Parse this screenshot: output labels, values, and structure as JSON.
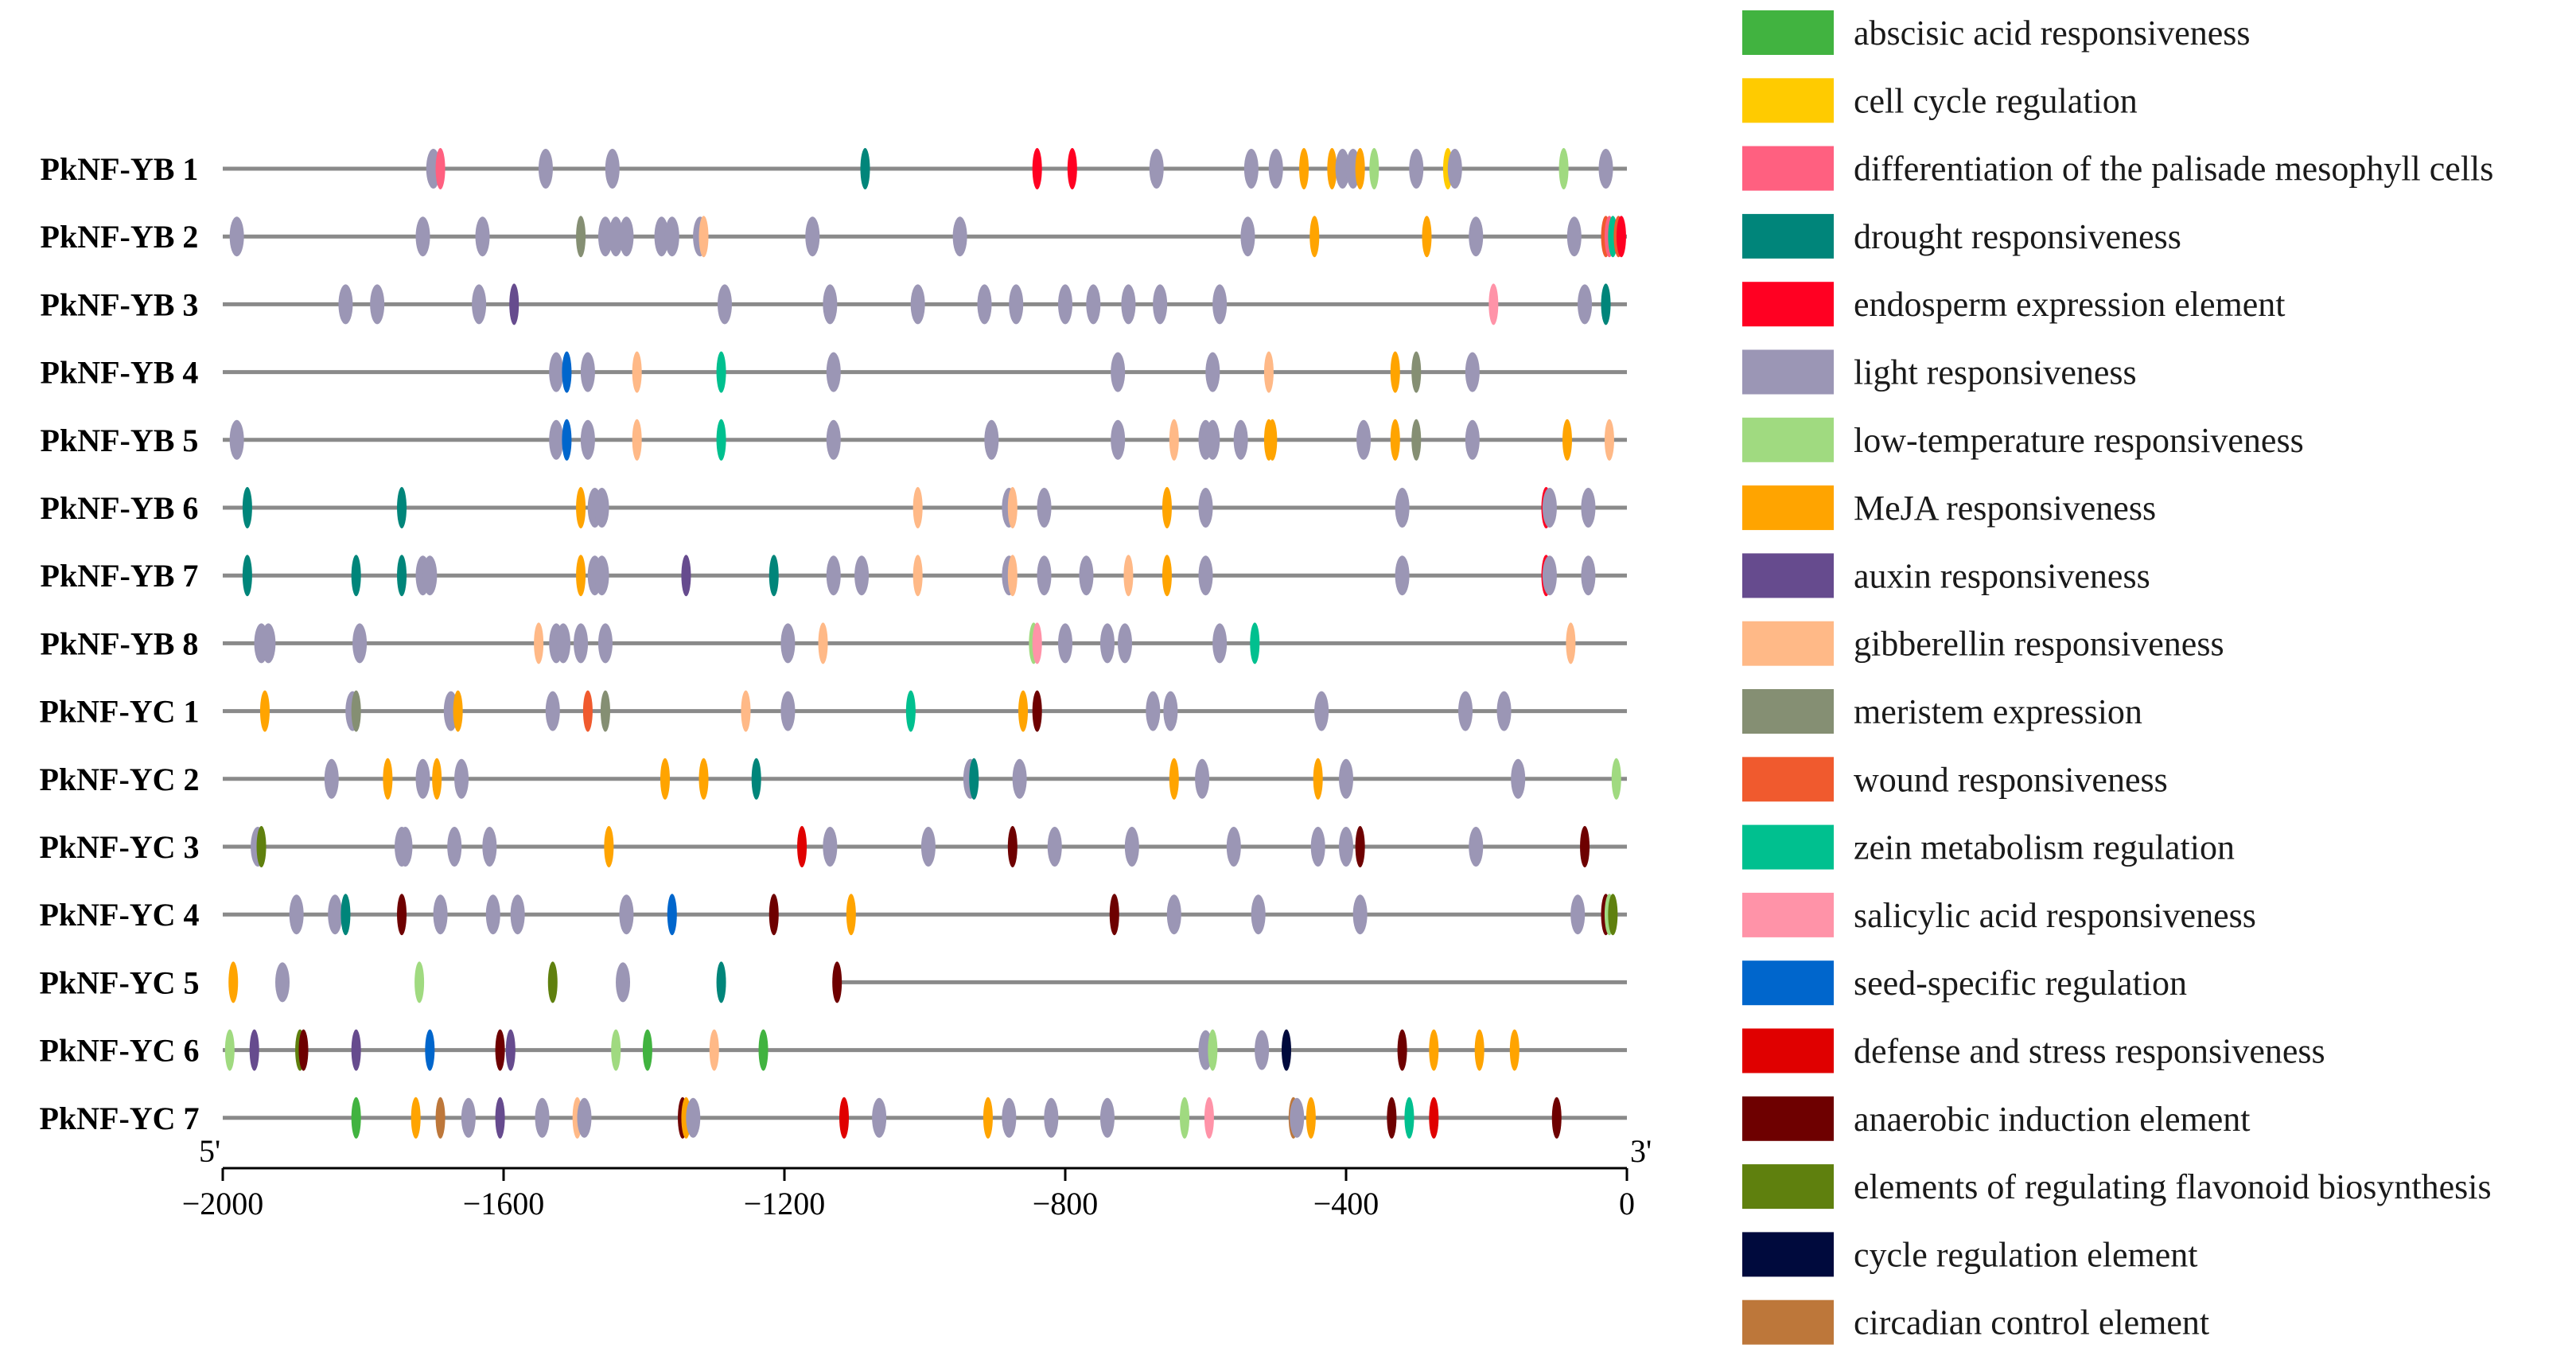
{
  "chart_data": {
    "type": "scatter",
    "title": "",
    "xlabel": "",
    "ylabel": "",
    "xlim": [
      -2000,
      0
    ],
    "x_ticks": [
      -2000,
      -1600,
      -1200,
      -800,
      -400,
      0
    ],
    "x_tick_labels": [
      "−2000",
      "−1600",
      "−1200",
      "−800",
      "−400",
      "0"
    ],
    "end_labels": {
      "left": "5'",
      "right": "3'"
    },
    "categories": [
      {
        "name": "abscisic acid responsiveness",
        "color": "#41b340"
      },
      {
        "name": "cell cycle regulation",
        "color": "#ffcb00"
      },
      {
        "name": "differentiation of the palisade mesophyll cells",
        "color": "#ff6080"
      },
      {
        "name": "drought responsiveness",
        "color": "#00857a"
      },
      {
        "name": "endosperm expression element",
        "color": "#ff0022"
      },
      {
        "name": "light responsiveness",
        "color": "#9b96b5"
      },
      {
        "name": "low-temperature responsiveness",
        "color": "#a0da80"
      },
      {
        "name": "MeJA responsiveness",
        "color": "#ffa400"
      },
      {
        "name": "auxin responsiveness",
        "color": "#664b8e"
      },
      {
        "name": "gibberellin responsiveness",
        "color": "#ffb987"
      },
      {
        "name": "meristem expression",
        "color": "#858f73"
      },
      {
        "name": "wound responsiveness",
        "color": "#f05a2e"
      },
      {
        "name": "zein metabolism regulation",
        "color": "#00c08f"
      },
      {
        "name": "salicylic acid responsiveness",
        "color": "#ff93a8"
      },
      {
        "name": "seed-specific regulation",
        "color": "#0066cc"
      },
      {
        "name": "defense and stress responsiveness",
        "color": "#e00000"
      },
      {
        "name": "anaerobic induction element",
        "color": "#6e0000"
      },
      {
        "name": "elements of regulating flavonoid biosynthesis",
        "color": "#5f800e"
      },
      {
        "name": "cycle regulation element",
        "color": "#000a3d"
      },
      {
        "name": "circadian control element",
        "color": "#bd773a"
      }
    ],
    "genes": [
      {
        "name": "PkNF-YB 1",
        "length": 2000,
        "elements": [
          [
            -1700,
            5
          ],
          [
            -1690,
            2
          ],
          [
            -1540,
            5
          ],
          [
            -1445,
            5
          ],
          [
            -1085,
            3
          ],
          [
            -840,
            4
          ],
          [
            -790,
            4
          ],
          [
            -670,
            5
          ],
          [
            -535,
            5
          ],
          [
            -500,
            5
          ],
          [
            -460,
            7
          ],
          [
            -420,
            7
          ],
          [
            -405,
            5
          ],
          [
            -390,
            5
          ],
          [
            -380,
            7
          ],
          [
            -360,
            6
          ],
          [
            -300,
            5
          ],
          [
            -255,
            1
          ],
          [
            -245,
            5
          ],
          [
            -90,
            6
          ],
          [
            -30,
            5
          ]
        ]
      },
      {
        "name": "PkNF-YB 2",
        "length": 2000,
        "elements": [
          [
            -1980,
            5
          ],
          [
            -1715,
            5
          ],
          [
            -1630,
            5
          ],
          [
            -1490,
            10
          ],
          [
            -1455,
            5
          ],
          [
            -1440,
            5
          ],
          [
            -1425,
            5
          ],
          [
            -1375,
            5
          ],
          [
            -1360,
            5
          ],
          [
            -1320,
            5
          ],
          [
            -1315,
            9
          ],
          [
            -1160,
            5
          ],
          [
            -950,
            5
          ],
          [
            -540,
            5
          ],
          [
            -445,
            7
          ],
          [
            -285,
            7
          ],
          [
            -215,
            5
          ],
          [
            -75,
            5
          ],
          [
            -30,
            11
          ],
          [
            -25,
            2
          ],
          [
            -20,
            12
          ],
          [
            -12,
            11
          ],
          [
            -8,
            4
          ]
        ]
      },
      {
        "name": "PkNF-YB 3",
        "length": 2000,
        "elements": [
          [
            -1825,
            5
          ],
          [
            -1780,
            5
          ],
          [
            -1635,
            5
          ],
          [
            -1585,
            8
          ],
          [
            -1285,
            5
          ],
          [
            -1135,
            5
          ],
          [
            -1010,
            5
          ],
          [
            -915,
            5
          ],
          [
            -870,
            5
          ],
          [
            -800,
            5
          ],
          [
            -760,
            5
          ],
          [
            -710,
            5
          ],
          [
            -665,
            5
          ],
          [
            -580,
            5
          ],
          [
            -190,
            13
          ],
          [
            -60,
            5
          ],
          [
            -30,
            3
          ]
        ]
      },
      {
        "name": "PkNF-YB 4",
        "length": 2000,
        "elements": [
          [
            -1525,
            5
          ],
          [
            -1510,
            14
          ],
          [
            -1480,
            5
          ],
          [
            -1410,
            9
          ],
          [
            -1290,
            12
          ],
          [
            -1130,
            5
          ],
          [
            -725,
            5
          ],
          [
            -590,
            5
          ],
          [
            -510,
            9
          ],
          [
            -330,
            7
          ],
          [
            -300,
            10
          ],
          [
            -220,
            5
          ]
        ]
      },
      {
        "name": "PkNF-YB 5",
        "length": 2000,
        "elements": [
          [
            -1980,
            5
          ],
          [
            -1525,
            5
          ],
          [
            -1510,
            14
          ],
          [
            -1480,
            5
          ],
          [
            -1410,
            9
          ],
          [
            -1290,
            12
          ],
          [
            -1130,
            5
          ],
          [
            -905,
            5
          ],
          [
            -725,
            5
          ],
          [
            -645,
            9
          ],
          [
            -600,
            5
          ],
          [
            -590,
            5
          ],
          [
            -550,
            5
          ],
          [
            -510,
            7
          ],
          [
            -505,
            7
          ],
          [
            -375,
            5
          ],
          [
            -330,
            7
          ],
          [
            -300,
            10
          ],
          [
            -220,
            5
          ],
          [
            -85,
            7
          ],
          [
            -25,
            9
          ]
        ]
      },
      {
        "name": "PkNF-YB 6",
        "length": 2000,
        "elements": [
          [
            -1965,
            3
          ],
          [
            -1745,
            3
          ],
          [
            -1490,
            7
          ],
          [
            -1470,
            5
          ],
          [
            -1460,
            5
          ],
          [
            -1010,
            9
          ],
          [
            -880,
            5
          ],
          [
            -875,
            9
          ],
          [
            -830,
            5
          ],
          [
            -655,
            7
          ],
          [
            -600,
            5
          ],
          [
            -320,
            5
          ],
          [
            -115,
            4
          ],
          [
            -110,
            5
          ],
          [
            -55,
            5
          ]
        ]
      },
      {
        "name": "PkNF-YB 7",
        "length": 2000,
        "elements": [
          [
            -1965,
            3
          ],
          [
            -1810,
            3
          ],
          [
            -1745,
            3
          ],
          [
            -1715,
            5
          ],
          [
            -1705,
            5
          ],
          [
            -1490,
            7
          ],
          [
            -1470,
            5
          ],
          [
            -1460,
            5
          ],
          [
            -1340,
            8
          ],
          [
            -1215,
            3
          ],
          [
            -1130,
            5
          ],
          [
            -1090,
            5
          ],
          [
            -1010,
            9
          ],
          [
            -880,
            5
          ],
          [
            -875,
            9
          ],
          [
            -830,
            5
          ],
          [
            -770,
            5
          ],
          [
            -710,
            9
          ],
          [
            -655,
            7
          ],
          [
            -600,
            5
          ],
          [
            -320,
            5
          ],
          [
            -115,
            4
          ],
          [
            -110,
            5
          ],
          [
            -55,
            5
          ]
        ]
      },
      {
        "name": "PkNF-YB 8",
        "length": 2000,
        "elements": [
          [
            -1945,
            5
          ],
          [
            -1935,
            5
          ],
          [
            -1805,
            5
          ],
          [
            -1550,
            9
          ],
          [
            -1525,
            5
          ],
          [
            -1515,
            5
          ],
          [
            -1490,
            5
          ],
          [
            -1455,
            5
          ],
          [
            -1195,
            5
          ],
          [
            -1145,
            9
          ],
          [
            -845,
            6
          ],
          [
            -840,
            13
          ],
          [
            -800,
            5
          ],
          [
            -740,
            5
          ],
          [
            -715,
            5
          ],
          [
            -580,
            5
          ],
          [
            -530,
            12
          ],
          [
            -80,
            9
          ]
        ]
      },
      {
        "name": "PkNF-YC 1",
        "length": 2000,
        "elements": [
          [
            -1940,
            7
          ],
          [
            -1815,
            5
          ],
          [
            -1810,
            10
          ],
          [
            -1675,
            5
          ],
          [
            -1665,
            7
          ],
          [
            -1530,
            5
          ],
          [
            -1480,
            11
          ],
          [
            -1455,
            10
          ],
          [
            -1255,
            9
          ],
          [
            -1195,
            5
          ],
          [
            -1020,
            12
          ],
          [
            -860,
            7
          ],
          [
            -840,
            16
          ],
          [
            -675,
            5
          ],
          [
            -650,
            5
          ],
          [
            -435,
            5
          ],
          [
            -230,
            5
          ],
          [
            -175,
            5
          ]
        ]
      },
      {
        "name": "PkNF-YC 2",
        "length": 2000,
        "elements": [
          [
            -1845,
            5
          ],
          [
            -1765,
            7
          ],
          [
            -1715,
            5
          ],
          [
            -1695,
            7
          ],
          [
            -1660,
            5
          ],
          [
            -1370,
            7
          ],
          [
            -1315,
            7
          ],
          [
            -1240,
            3
          ],
          [
            -935,
            5
          ],
          [
            -930,
            3
          ],
          [
            -865,
            5
          ],
          [
            -645,
            7
          ],
          [
            -605,
            5
          ],
          [
            -440,
            7
          ],
          [
            -400,
            5
          ],
          [
            -155,
            5
          ],
          [
            -15,
            6
          ]
        ]
      },
      {
        "name": "PkNF-YC 3",
        "length": 2000,
        "elements": [
          [
            -1950,
            5
          ],
          [
            -1945,
            17
          ],
          [
            -1745,
            5
          ],
          [
            -1740,
            5
          ],
          [
            -1670,
            5
          ],
          [
            -1620,
            5
          ],
          [
            -1450,
            7
          ],
          [
            -1175,
            15
          ],
          [
            -1135,
            5
          ],
          [
            -995,
            5
          ],
          [
            -875,
            16
          ],
          [
            -815,
            5
          ],
          [
            -705,
            5
          ],
          [
            -560,
            5
          ],
          [
            -440,
            5
          ],
          [
            -400,
            5
          ],
          [
            -380,
            16
          ],
          [
            -215,
            5
          ],
          [
            -60,
            16
          ]
        ]
      },
      {
        "name": "PkNF-YC 4",
        "length": 2000,
        "elements": [
          [
            -1895,
            5
          ],
          [
            -1840,
            5
          ],
          [
            -1825,
            3
          ],
          [
            -1745,
            16
          ],
          [
            -1690,
            5
          ],
          [
            -1615,
            5
          ],
          [
            -1580,
            5
          ],
          [
            -1425,
            5
          ],
          [
            -1360,
            14
          ],
          [
            -1215,
            16
          ],
          [
            -1105,
            7
          ],
          [
            -730,
            16
          ],
          [
            -645,
            5
          ],
          [
            -525,
            5
          ],
          [
            -380,
            5
          ],
          [
            -70,
            5
          ],
          [
            -30,
            16
          ],
          [
            -25,
            6
          ],
          [
            -20,
            17
          ]
        ]
      },
      {
        "name": "PkNF-YC 5",
        "length": 1125,
        "elements": [
          [
            -1985,
            7
          ],
          [
            -1915,
            5
          ],
          [
            -1720,
            6
          ],
          [
            -1530,
            17
          ],
          [
            -1430,
            5
          ],
          [
            -1290,
            3
          ],
          [
            -1125,
            16
          ]
        ]
      },
      {
        "name": "PkNF-YC 6",
        "length": 2000,
        "elements": [
          [
            -1990,
            6
          ],
          [
            -1955,
            8
          ],
          [
            -1890,
            17
          ],
          [
            -1885,
            16
          ],
          [
            -1810,
            8
          ],
          [
            -1705,
            14
          ],
          [
            -1605,
            16
          ],
          [
            -1590,
            8
          ],
          [
            -1440,
            6
          ],
          [
            -1395,
            0
          ],
          [
            -1300,
            9
          ],
          [
            -1230,
            0
          ],
          [
            -600,
            5
          ],
          [
            -590,
            6
          ],
          [
            -520,
            5
          ],
          [
            -485,
            18
          ],
          [
            -320,
            16
          ],
          [
            -275,
            7
          ],
          [
            -210,
            7
          ],
          [
            -160,
            7
          ]
        ]
      },
      {
        "name": "PkNF-YC 7",
        "length": 2000,
        "elements": [
          [
            -1810,
            0
          ],
          [
            -1725,
            7
          ],
          [
            -1690,
            19
          ],
          [
            -1650,
            5
          ],
          [
            -1605,
            8
          ],
          [
            -1545,
            5
          ],
          [
            -1495,
            9
          ],
          [
            -1485,
            5
          ],
          [
            -1345,
            16
          ],
          [
            -1340,
            7
          ],
          [
            -1330,
            5
          ],
          [
            -1115,
            15
          ],
          [
            -1065,
            5
          ],
          [
            -910,
            7
          ],
          [
            -880,
            5
          ],
          [
            -820,
            5
          ],
          [
            -740,
            5
          ],
          [
            -630,
            6
          ],
          [
            -595,
            13
          ],
          [
            -475,
            19
          ],
          [
            -470,
            5
          ],
          [
            -450,
            7
          ],
          [
            -335,
            16
          ],
          [
            -310,
            12
          ],
          [
            -275,
            15
          ],
          [
            -100,
            16
          ]
        ]
      }
    ]
  }
}
